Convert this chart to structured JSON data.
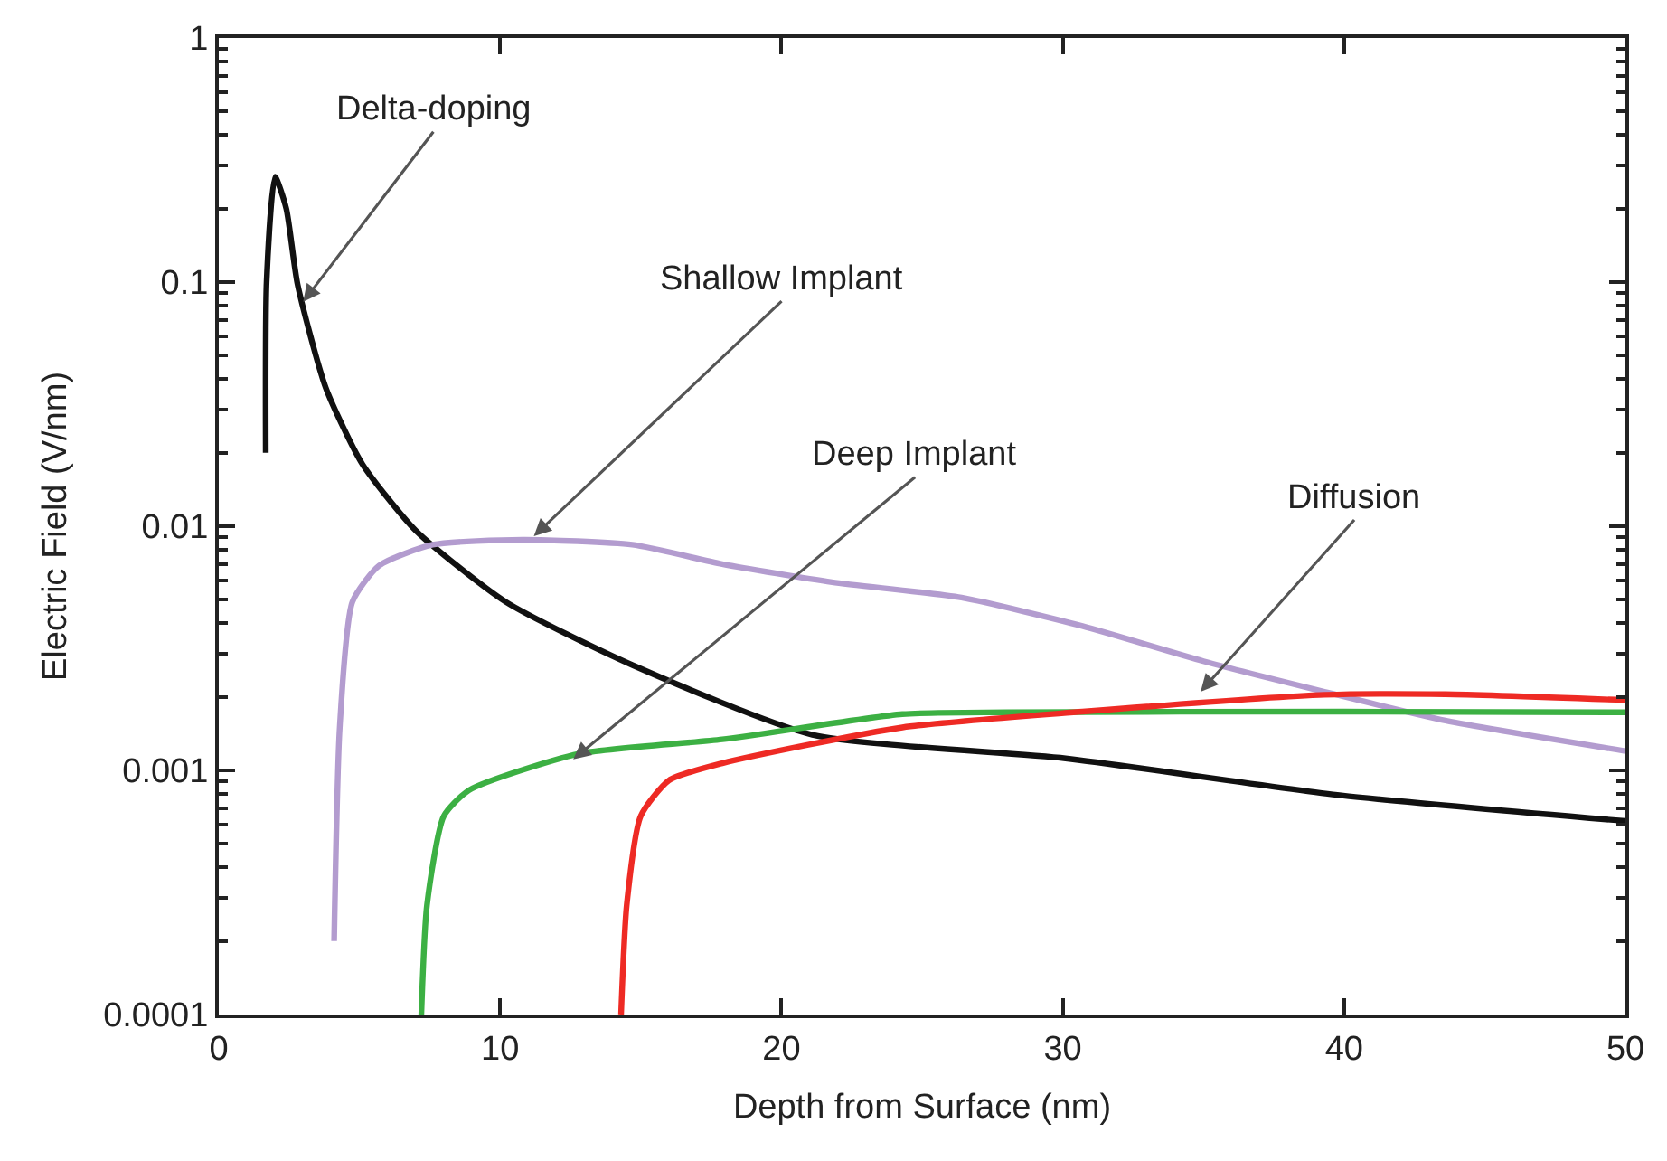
{
  "chart_data": {
    "type": "line",
    "xlabel": "Depth from Surface (nm)",
    "ylabel": "Electric Field (V/nm)",
    "log": "y",
    "xlim": [
      0,
      50
    ],
    "xticks": [
      0,
      10,
      20,
      30,
      40,
      50
    ],
    "ylim": [
      0.0001,
      1
    ],
    "yticks": [
      1,
      0.1,
      0.01,
      0.001,
      0.0001
    ],
    "marker": "none",
    "line_style": "solid",
    "series": [
      {
        "color": "#111111",
        "x": [
          1.67,
          1.7,
          2.0,
          2.4,
          2.8,
          3.8,
          5.1,
          7.0,
          10.2,
          14.7,
          21.1,
          30.1,
          39.9,
          50
        ],
        "values": [
          0.02,
          0.1,
          0.27,
          0.2,
          0.098,
          0.037,
          0.018,
          0.0096,
          0.0049,
          0.0027,
          0.0014,
          0.00112,
          0.00079,
          0.00062
        ]
      },
      {
        "color": "#b39ccf",
        "x": [
          4.1,
          4.3,
          4.75,
          5.7,
          7.6,
          10.8,
          14.7,
          17.9,
          21.8,
          26.4,
          30.7,
          35.0,
          39.3,
          43.6,
          50
        ],
        "values": [
          0.0002,
          0.0015,
          0.0049,
          0.0069,
          0.0084,
          0.0088,
          0.0084,
          0.007,
          0.0059,
          0.0051,
          0.0039,
          0.0028,
          0.0021,
          0.0016,
          0.0012
        ]
      },
      {
        "color": "#3cb043",
        "x": [
          7.2,
          7.4,
          8.0,
          8.9,
          12.8,
          17.9,
          24.3,
          28,
          40,
          50
        ],
        "values": [
          0.0001,
          0.00028,
          0.00065,
          0.00083,
          0.00117,
          0.00134,
          0.0017,
          0.00173,
          0.00174,
          0.00173
        ]
      },
      {
        "color": "#ee2a24",
        "x": [
          14.3,
          14.5,
          15.0,
          16.0,
          17.9,
          24.3,
          30.7,
          39.3,
          43.6,
          50
        ],
        "values": [
          0.0001,
          0.00028,
          0.00065,
          0.00091,
          0.00107,
          0.0015,
          0.00174,
          0.00204,
          0.00205,
          0.00194
        ]
      }
    ],
    "annotations": [
      {
        "text": "Delta-doping",
        "x": 3.0,
        "y": 0.083
      },
      {
        "text": "Shallow Implant",
        "x": 11.2,
        "y": 0.0091
      },
      {
        "text": "Deep Implant",
        "x": 12.6,
        "y": 0.00111
      },
      {
        "text": "Diffusion",
        "x": 34.9,
        "y": 0.0021
      }
    ]
  }
}
